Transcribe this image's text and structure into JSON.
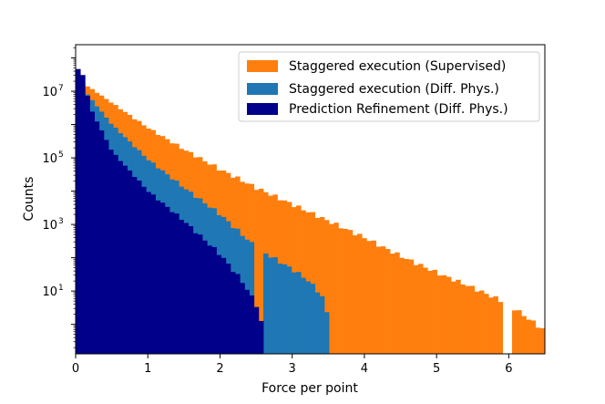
{
  "chart_data": {
    "type": "bar",
    "subtype": "histogram",
    "xlabel": "Force per point",
    "ylabel": "Counts",
    "xlim": [
      0,
      6.5
    ],
    "ylim": [
      0.13,
      250000000
    ],
    "y_scale": "log",
    "bin_width": 0.065,
    "x_ticks": [
      "0",
      "1",
      "2",
      "3",
      "4",
      "5",
      "6"
    ],
    "y_ticks": [
      {
        "value": 10,
        "base": "10",
        "exp": "1"
      },
      {
        "value": 1000,
        "base": "10",
        "exp": "3"
      },
      {
        "value": 100000,
        "base": "10",
        "exp": "5"
      },
      {
        "value": 10000000,
        "base": "10",
        "exp": "7"
      }
    ],
    "legend_position": "top-right",
    "series": [
      {
        "name": "Staggered execution (Supervised)",
        "color": "#ff7f0e",
        "x_range": [
          0,
          6.5
        ],
        "log10_anchors": [
          [
            0,
            7.35
          ],
          [
            0.2,
            7.1
          ],
          [
            0.5,
            6.65
          ],
          [
            1,
            5.9
          ],
          [
            1.5,
            5.25
          ],
          [
            2,
            4.65
          ],
          [
            2.5,
            4.1
          ],
          [
            3,
            3.6
          ],
          [
            3.5,
            3.1
          ],
          [
            4,
            2.6
          ],
          [
            4.5,
            2.05
          ],
          [
            5,
            1.55
          ],
          [
            5.5,
            1.1
          ],
          [
            6,
            0.6
          ],
          [
            6.5,
            -0.2
          ]
        ],
        "gap_at_x": [
          5.98
        ]
      },
      {
        "name": "Staggered execution (Diff. Phys.)",
        "color": "#1f77b4",
        "x_range": [
          0,
          3.51
        ],
        "log10_anchors": [
          [
            0,
            7.35
          ],
          [
            0.2,
            6.8
          ],
          [
            0.5,
            6.0
          ],
          [
            1,
            4.95
          ],
          [
            1.5,
            4.1
          ],
          [
            2,
            3.3
          ],
          [
            2.5,
            2.3
          ],
          [
            3,
            1.65
          ],
          [
            3.2,
            1.35
          ],
          [
            3.4,
            0.9
          ],
          [
            3.5,
            0.2
          ]
        ],
        "gap_at_x": [
          2.53
        ]
      },
      {
        "name": "Prediction Refinement (Diff. Phys.)",
        "color": "#00008b",
        "x_range": [
          0,
          2.6
        ],
        "log10_anchors": [
          [
            0,
            7.45
          ],
          [
            0.06,
            7.85
          ],
          [
            0.2,
            6.5
          ],
          [
            0.5,
            5.2
          ],
          [
            1,
            4.0
          ],
          [
            1.5,
            3.1
          ],
          [
            2,
            2.1
          ],
          [
            2.3,
            1.3
          ],
          [
            2.5,
            0.6
          ],
          [
            2.6,
            -0.2
          ]
        ]
      }
    ]
  }
}
